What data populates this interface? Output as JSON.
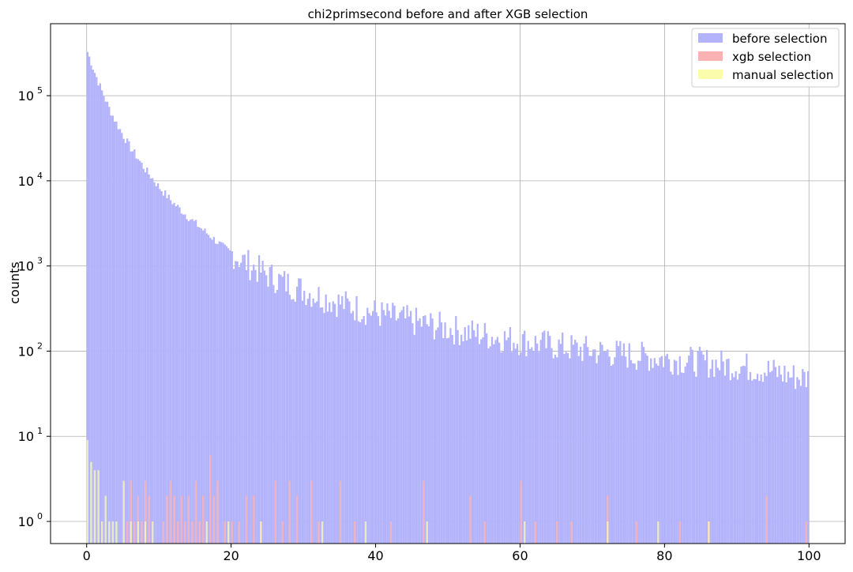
{
  "chart_data": {
    "type": "histogram",
    "title": "chi2primsecond before and after XGB selection",
    "xlabel": "",
    "ylabel": "counts",
    "xlim": [
      -5,
      105
    ],
    "ylim": [
      0.55,
      700000
    ],
    "yscale": "log",
    "grid": true,
    "legend_position": "top-right",
    "bin_width": 0.25,
    "x_ticks": [
      0,
      20,
      40,
      60,
      80,
      100
    ],
    "x_tick_labels": [
      "0",
      "20",
      "40",
      "60",
      "80",
      "100"
    ],
    "y_ticks": [
      1,
      10,
      100,
      1000,
      10000,
      100000
    ],
    "y_tick_labels": [
      "10",
      "10",
      "10",
      "10",
      "10",
      "10"
    ],
    "y_tick_exponents": [
      "0",
      "1",
      "2",
      "3",
      "4",
      "5"
    ],
    "series": [
      {
        "name": "before selection",
        "color": "#b3b3fc",
        "bins": [
          [
            0,
            350000
          ],
          [
            1,
            200000
          ],
          [
            2,
            120000
          ],
          [
            3,
            75000
          ],
          [
            4,
            50000
          ],
          [
            5,
            35000
          ],
          [
            6,
            25000
          ],
          [
            7,
            19000
          ],
          [
            8,
            14000
          ],
          [
            9,
            11000
          ],
          [
            10,
            8500
          ],
          [
            11,
            6800
          ],
          [
            12,
            5500
          ],
          [
            13,
            4600
          ],
          [
            14,
            3800
          ],
          [
            15,
            3200
          ],
          [
            16,
            2700
          ],
          [
            17,
            2300
          ],
          [
            18,
            1950
          ],
          [
            19,
            1650
          ],
          [
            20,
            1450
          ],
          [
            21,
            1250
          ],
          [
            22,
            1100
          ],
          [
            23,
            980
          ],
          [
            24,
            880
          ],
          [
            25,
            790
          ],
          [
            26,
            720
          ],
          [
            27,
            660
          ],
          [
            28,
            610
          ],
          [
            29,
            560
          ],
          [
            30,
            520
          ],
          [
            31,
            480
          ],
          [
            32,
            450
          ],
          [
            33,
            420
          ],
          [
            34,
            395
          ],
          [
            35,
            370
          ],
          [
            36,
            350
          ],
          [
            37,
            330
          ],
          [
            38,
            310
          ],
          [
            39,
            295
          ],
          [
            40,
            280
          ],
          [
            42,
            255
          ],
          [
            44,
            235
          ],
          [
            46,
            215
          ],
          [
            48,
            200
          ],
          [
            50,
            185
          ],
          [
            52,
            170
          ],
          [
            54,
            160
          ],
          [
            56,
            150
          ],
          [
            58,
            140
          ],
          [
            60,
            132
          ],
          [
            62,
            125
          ],
          [
            64,
            118
          ],
          [
            66,
            112
          ],
          [
            68,
            106
          ],
          [
            70,
            100
          ],
          [
            72,
            96
          ],
          [
            74,
            92
          ],
          [
            76,
            88
          ],
          [
            78,
            85
          ],
          [
            80,
            82
          ],
          [
            82,
            79
          ],
          [
            84,
            76
          ],
          [
            86,
            73
          ],
          [
            88,
            70
          ],
          [
            90,
            67
          ],
          [
            92,
            64
          ],
          [
            94,
            60
          ],
          [
            96,
            55
          ],
          [
            98,
            50
          ],
          [
            100,
            48
          ]
        ]
      },
      {
        "name": "xgb selection",
        "color": "#fcb2b2",
        "bins": [
          [
            5.5,
            1
          ],
          [
            6.0,
            3
          ],
          [
            6.5,
            1
          ],
          [
            7.0,
            2
          ],
          [
            7.5,
            1
          ],
          [
            8.0,
            3
          ],
          [
            8.5,
            2
          ],
          [
            10.5,
            1
          ],
          [
            11.0,
            2
          ],
          [
            11.5,
            3
          ],
          [
            12.0,
            2
          ],
          [
            12.5,
            1
          ],
          [
            13.0,
            2
          ],
          [
            13.5,
            1
          ],
          [
            14.0,
            2
          ],
          [
            14.5,
            1
          ],
          [
            15.0,
            3
          ],
          [
            15.5,
            1
          ],
          [
            16.0,
            2
          ],
          [
            17.0,
            6
          ],
          [
            17.5,
            2
          ],
          [
            18.0,
            3
          ],
          [
            19.0,
            1
          ],
          [
            20.0,
            1
          ],
          [
            21.0,
            1
          ],
          [
            22.0,
            2
          ],
          [
            23.0,
            2
          ],
          [
            24.0,
            1
          ],
          [
            26.0,
            3
          ],
          [
            27.0,
            1
          ],
          [
            28.0,
            3
          ],
          [
            29.0,
            2
          ],
          [
            31.0,
            3
          ],
          [
            32.0,
            1
          ],
          [
            35.0,
            3
          ],
          [
            37.0,
            1
          ],
          [
            42.0,
            1
          ],
          [
            46.5,
            3
          ],
          [
            53.0,
            2
          ],
          [
            55.0,
            1
          ],
          [
            60.0,
            3
          ],
          [
            62.0,
            1
          ],
          [
            65.0,
            1
          ],
          [
            67.0,
            1
          ],
          [
            72.0,
            2
          ],
          [
            76.0,
            1
          ],
          [
            82.0,
            1
          ],
          [
            86.0,
            1
          ],
          [
            94.0,
            2
          ],
          [
            99.5,
            1
          ]
        ]
      },
      {
        "name": "manual selection",
        "color": "#fcfcad",
        "bins": [
          [
            0.0,
            9
          ],
          [
            0.5,
            5
          ],
          [
            1.0,
            4
          ],
          [
            1.5,
            4
          ],
          [
            2.0,
            1
          ],
          [
            2.5,
            2
          ],
          [
            3.0,
            1
          ],
          [
            3.5,
            1
          ],
          [
            4.0,
            1
          ],
          [
            5.0,
            3
          ],
          [
            6.0,
            1
          ],
          [
            7.0,
            1
          ],
          [
            8.0,
            1
          ],
          [
            9.0,
            1
          ],
          [
            16.5,
            1
          ],
          [
            19.5,
            1
          ],
          [
            24.0,
            1
          ],
          [
            32.5,
            1
          ],
          [
            38.5,
            1
          ],
          [
            47.0,
            1
          ],
          [
            60.5,
            1
          ],
          [
            72.0,
            1
          ],
          [
            79.0,
            1
          ],
          [
            86.0,
            1
          ]
        ]
      }
    ]
  }
}
